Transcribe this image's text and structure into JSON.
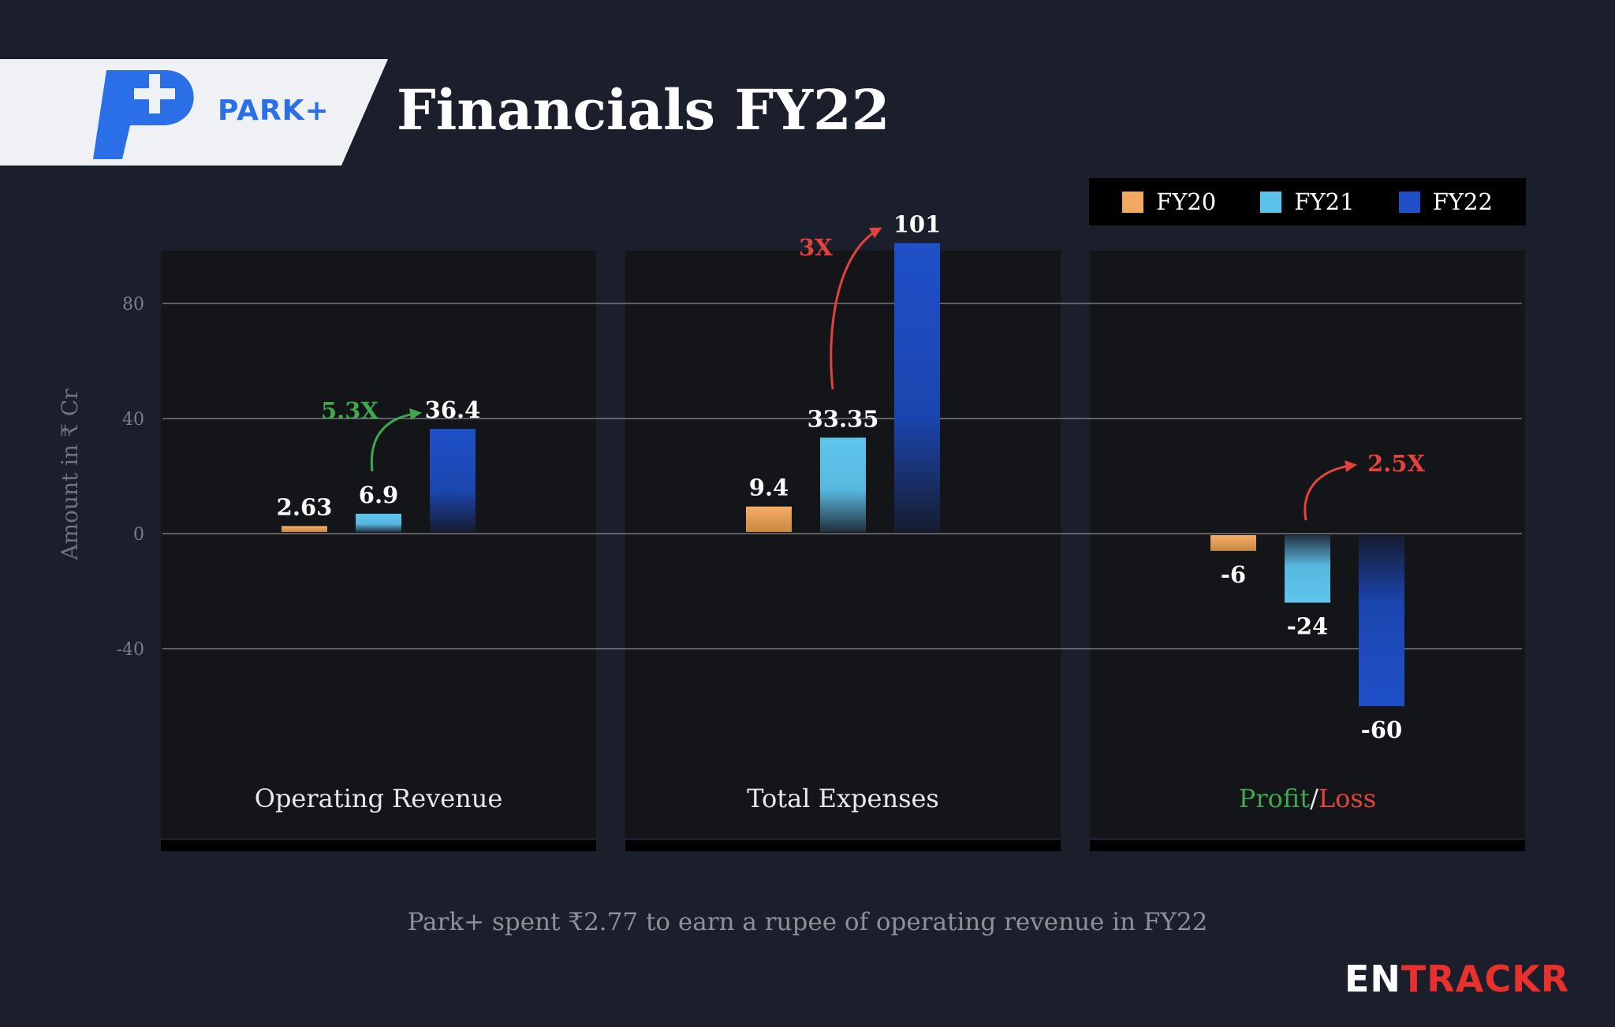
{
  "header": {
    "brand": "PARK+",
    "title": "Financials FY22"
  },
  "legend": [
    {
      "label": "FY20",
      "color": "#f3a862"
    },
    {
      "label": "FY21",
      "color": "#5bc2ea"
    },
    {
      "label": "FY22",
      "color": "#1e4fc4"
    }
  ],
  "chart_data": {
    "type": "bar",
    "categories": [
      "Operating Revenue",
      "Total Expenses",
      "Profit/Loss"
    ],
    "series": [
      {
        "name": "FY20",
        "values": [
          2.63,
          9.4,
          -6
        ]
      },
      {
        "name": "FY21",
        "values": [
          6.9,
          33.35,
          -24
        ]
      },
      {
        "name": "FY22",
        "values": [
          36.4,
          101,
          -60
        ]
      }
    ],
    "data_labels": [
      [
        "2.63",
        "9.4",
        "-6"
      ],
      [
        "6.9",
        "33.35",
        "-24"
      ],
      [
        "36.4",
        "101",
        "-60"
      ]
    ],
    "ylabel": "Amount in ₹ Cr",
    "yticks": [
      "80",
      "40",
      "0",
      "-40"
    ],
    "ylim": [
      -80,
      100
    ],
    "grid": true,
    "legend_position": "top-right",
    "annotations": [
      {
        "text": "5.3X",
        "group": "Operating Revenue",
        "color": "#3ea84f"
      },
      {
        "text": "3X",
        "group": "Total Expenses",
        "color": "#e2433c"
      },
      {
        "text": "2.5X",
        "group": "Profit/Loss",
        "color": "#e2433c"
      }
    ]
  },
  "category_styles": {
    "profit_label": "Profit",
    "slash": "/",
    "loss_label": "Loss",
    "profit_color": "#3ea84f",
    "loss_color": "#e2433c"
  },
  "footnote": "Park+ spent ₹2.77 to earn a rupee of operating revenue in FY22",
  "credit": {
    "part1": "EN",
    "part2": "TRACKR"
  }
}
